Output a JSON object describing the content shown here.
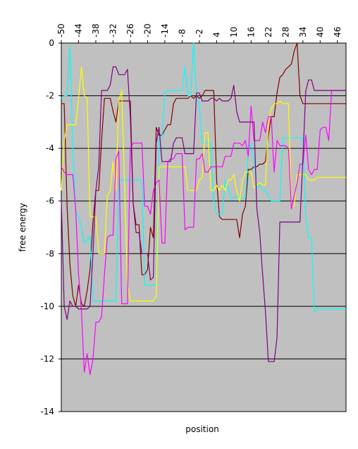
{
  "chart_data": {
    "type": "line",
    "xlabel": "position",
    "ylabel": "free energy",
    "ylim": [
      -14,
      0
    ],
    "y_ticks": [
      0,
      -2,
      -4,
      -6,
      -8,
      -10,
      -12,
      -14
    ],
    "x_ticks_top": [
      -50,
      -44,
      -38,
      -32,
      -26,
      -20,
      -14,
      -8,
      -2,
      4,
      10,
      16,
      22,
      28,
      34,
      40,
      46
    ],
    "xlim": [
      -50,
      49
    ],
    "grid": "horizontal",
    "x_axis_position": "top",
    "plot_background": "#c0c0c0",
    "series": [
      {
        "color": "#800000",
        "x": [
          -50,
          -49,
          -48,
          -47,
          -46,
          -45,
          -44,
          -43,
          -42,
          -41,
          -40,
          -39,
          -38,
          -37,
          -36,
          -35,
          -34,
          -33,
          -32,
          -31,
          -30,
          -29,
          -28,
          -27,
          -26,
          -25,
          -24,
          -23,
          -22,
          -21,
          -20,
          -19,
          -18,
          -17,
          -16,
          -15,
          -14,
          -13,
          -12,
          -11,
          -10,
          -9,
          -8,
          -7,
          -6,
          -5,
          -4,
          -3,
          -2,
          -1,
          0,
          1,
          2,
          3,
          4,
          5,
          6,
          7,
          8,
          9,
          10,
          11,
          12,
          13,
          14,
          15,
          16,
          17,
          18,
          19,
          20,
          21,
          22,
          23,
          24,
          25,
          26,
          27,
          28,
          29,
          30,
          31,
          32,
          33,
          34,
          35,
          36,
          37,
          38,
          39,
          40,
          41,
          42,
          43,
          44,
          45,
          46,
          47,
          48,
          49
        ],
        "y": [
          -2.3,
          -2.3,
          -6.2,
          -8.4,
          -9.6,
          -10.0,
          -9.2,
          -9.9,
          -10.0,
          -9.4,
          -8.6,
          -6.8,
          -5.6,
          -5.6,
          -3.7,
          -2.1,
          -2.1,
          -2.1,
          -2.6,
          -3.0,
          -2.2,
          -2.2,
          -2.2,
          -2.2,
          -2.2,
          -6.1,
          -6.9,
          -6.9,
          -8.8,
          -8.8,
          -8.6,
          -7.0,
          -7.4,
          -3.2,
          -3.5,
          -3.5,
          -3.3,
          -3.1,
          -3.1,
          -2.3,
          -2.1,
          -2.1,
          -2.1,
          -2.1,
          -2.1,
          -2.0,
          -2.1,
          -2.0,
          -2.1,
          -2.0,
          -1.8,
          -1.8,
          -1.8,
          -1.8,
          -5.2,
          -6.6,
          -6.7,
          -6.7,
          -6.7,
          -6.7,
          -6.7,
          -6.7,
          -7.4,
          -6.5,
          -6.2,
          -4.8,
          -4.8,
          -4.7,
          -4.7,
          -4.6,
          -4.6,
          -4.5,
          -3.5,
          -2.8,
          -2.8,
          -1.9,
          -1.3,
          -1.2,
          -1.0,
          -0.9,
          -0.8,
          -0.3,
          0,
          -2.0,
          -2.3,
          -2.3,
          -2.3,
          -2.3,
          -2.3,
          -2.3,
          -2.3,
          -2.3,
          -2.3,
          -2.3,
          -2.3,
          -2.3,
          -2.3,
          -2.3,
          -2.3,
          -2.3
        ]
      },
      {
        "color": "#00ffff",
        "x": [
          -50,
          -49,
          -48,
          -47,
          -46,
          -45,
          -44,
          -43,
          -42,
          -41,
          -40,
          -39,
          -38,
          -37,
          -36,
          -35,
          -34,
          -33,
          -32,
          -31,
          -30,
          -29,
          -28,
          -27,
          -26,
          -25,
          -24,
          -23,
          -22,
          -21,
          -20,
          -19,
          -18,
          -17,
          -16,
          -15,
          -14,
          -13,
          -12,
          -11,
          -10,
          -9,
          -8,
          -7,
          -6,
          -5,
          -4,
          -3,
          -2,
          -1,
          0,
          1,
          2,
          3,
          4,
          5,
          6,
          7,
          8,
          9,
          10,
          11,
          12,
          13,
          14,
          15,
          16,
          17,
          18,
          19,
          20,
          21,
          22,
          23,
          24,
          25,
          26,
          27,
          28,
          29,
          30,
          31,
          32,
          33,
          34,
          35,
          36,
          37,
          38,
          39,
          40,
          41,
          42,
          43,
          44,
          45,
          46,
          47,
          48,
          49
        ],
        "y": [
          -2.1,
          -2.0,
          -2.0,
          -0.1,
          -4.0,
          -6.4,
          -6.6,
          -7.0,
          -7.6,
          -7.5,
          -7.3,
          -9.8,
          -9.8,
          -9.8,
          -9.8,
          -9.8,
          -9.8,
          -9.8,
          -9.8,
          -9.8,
          -5.2,
          -5.2,
          -5.2,
          -5.2,
          -5.2,
          -5.2,
          -5.2,
          -5.2,
          -5.2,
          -9.2,
          -9.2,
          -9.2,
          -9.2,
          -9.2,
          -3.6,
          -3.6,
          -1.9,
          -1.8,
          -1.8,
          -1.8,
          -1.8,
          -1.8,
          -1.8,
          -0.9,
          -2.0,
          -2.0,
          0.0,
          -2.0,
          -2.4,
          -3.8,
          -3.8,
          -3.8,
          -3.8,
          -6.0,
          -6.5,
          -6.5,
          -6.5,
          -5.2,
          -5.5,
          -5.9,
          -5.9,
          -5.8,
          -5.9,
          -5.9,
          -5.9,
          -4.1,
          -3.8,
          -4.5,
          -5.5,
          -5.4,
          -5.6,
          -5.6,
          -5.8,
          -6.0,
          -6.0,
          -6.0,
          -6.0,
          -3.6,
          -3.6,
          -3.6,
          -3.6,
          -3.6,
          -3.6,
          -3.6,
          -3.6,
          -6.6,
          -7.4,
          -7.4,
          -10.2,
          -10.1,
          -10.1,
          -10.1,
          -10.1,
          -10.1,
          -10.1,
          -10.1,
          -10.1,
          -10.1,
          -10.1,
          -10.1
        ]
      },
      {
        "color": "#ffff00",
        "x": [
          -50,
          -49,
          -48,
          -47,
          -46,
          -45,
          -44,
          -43,
          -42,
          -41,
          -40,
          -39,
          -38,
          -37,
          -36,
          -35,
          -34,
          -33,
          -32,
          -31,
          -30,
          -29,
          -28,
          -27,
          -26,
          -25,
          -24,
          -23,
          -22,
          -21,
          -20,
          -19,
          -18,
          -17,
          -16,
          -15,
          -14,
          -13,
          -12,
          -11,
          -10,
          -9,
          -8,
          -7,
          -6,
          -5,
          -4,
          -3,
          -2,
          -1,
          0,
          1,
          2,
          3,
          4,
          5,
          6,
          7,
          8,
          9,
          10,
          11,
          12,
          13,
          14,
          15,
          16,
          17,
          18,
          19,
          20,
          21,
          22,
          23,
          24,
          25,
          26,
          27,
          28,
          29,
          30,
          31,
          32,
          33,
          34,
          35,
          36,
          37,
          38,
          39,
          40,
          41,
          42,
          43,
          44,
          45,
          46,
          47,
          48,
          49
        ],
        "y": [
          -5.6,
          -3.7,
          -3.1,
          -3.1,
          -3.1,
          -3.1,
          -2.1,
          -0.9,
          -2.0,
          -2.1,
          -6.6,
          -6.6,
          -6.6,
          -8.0,
          -8.0,
          -8.0,
          -5.8,
          -5.6,
          -4.5,
          -5.6,
          -2.2,
          -1.8,
          -5.4,
          -9.1,
          -9.8,
          -9.8,
          -9.8,
          -9.8,
          -9.8,
          -9.8,
          -9.8,
          -9.8,
          -9.8,
          -9.6,
          -4.7,
          -4.7,
          -4.7,
          -4.7,
          -4.7,
          -4.7,
          -4.7,
          -4.7,
          -4.7,
          -4.7,
          -5.6,
          -5.6,
          -5.6,
          -5.6,
          -5.2,
          -5.1,
          -3.4,
          -3.4,
          -5.6,
          -5.6,
          -5.4,
          -5.6,
          -5.4,
          -5.6,
          -5.2,
          -5.2,
          -5.0,
          -5.6,
          -6.0,
          -5.2,
          -4.9,
          -4.9,
          -4.9,
          -5.5,
          -5.4,
          -5.3,
          -5.4,
          -5.4,
          -3.0,
          -2.5,
          -2.3,
          -2.3,
          -2.2,
          -2.3,
          -2.3,
          -2.3,
          -6.2,
          -6.2,
          -5.0,
          -5.0,
          -5.0,
          -5.0,
          -5.2,
          -5.2,
          -5.2,
          -5.1,
          -5.1,
          -5.1,
          -5.1,
          -5.1,
          -5.1,
          -5.1,
          -5.1,
          -5.1,
          -5.1,
          -5.1
        ]
      },
      {
        "color": "#ff00ff",
        "x": [
          -50,
          -49,
          -48,
          -47,
          -46,
          -45,
          -44,
          -43,
          -42,
          -41,
          -40,
          -39,
          -38,
          -37,
          -36,
          -35,
          -34,
          -33,
          -32,
          -31,
          -30,
          -29,
          -28,
          -27,
          -26,
          -25,
          -24,
          -23,
          -22,
          -21,
          -20,
          -19,
          -18,
          -17,
          -16,
          -15,
          -14,
          -13,
          -12,
          -11,
          -10,
          -9,
          -8,
          -7,
          -6,
          -5,
          -4,
          -3,
          -2,
          -1,
          0,
          1,
          2,
          3,
          4,
          5,
          6,
          7,
          8,
          9,
          10,
          11,
          12,
          13,
          14,
          15,
          16,
          17,
          18,
          19,
          20,
          21,
          22,
          23,
          24,
          25,
          26,
          27,
          28,
          29,
          30,
          31,
          32,
          33,
          34,
          35,
          36,
          37,
          38,
          39,
          40,
          41,
          42,
          43,
          44,
          45,
          46,
          47,
          48,
          49
        ],
        "y": [
          -4.7,
          -4.9,
          -5.0,
          -5.0,
          -5.0,
          -6.3,
          -8.8,
          -10.2,
          -12.5,
          -11.8,
          -12.6,
          -12.0,
          -10.6,
          -10.6,
          -10.4,
          -8.8,
          -7.4,
          -7.3,
          -7.3,
          -4.4,
          -4.1,
          -9.9,
          -9.9,
          -9.9,
          -4.0,
          -3.8,
          -3.8,
          -3.8,
          -3.8,
          -6.2,
          -6.2,
          -6.5,
          -5.6,
          -5.3,
          -5.2,
          -7.6,
          -7.6,
          -4.5,
          -4.4,
          -4.4,
          -4.2,
          -4.2,
          -4.2,
          -7.1,
          -7.0,
          -7.0,
          -7.0,
          -4.4,
          -4.4,
          -4.2,
          -4.9,
          -4.9,
          -4.7,
          -4.7,
          -4.7,
          -4.7,
          -4.7,
          -4.3,
          -4.3,
          -4.3,
          -3.8,
          -3.8,
          -3.8,
          -3.9,
          -3.7,
          -4.3,
          -2.4,
          -3.7,
          -3.7,
          -3.7,
          -3.0,
          -3.4,
          -2.8,
          -2.8,
          -4.9,
          -3.7,
          -3.9,
          -3.9,
          -3.9,
          -4.0,
          -6.3,
          -5.8,
          -5.3,
          -4.6,
          -4.6,
          -3.5,
          -4.8,
          -5.0,
          -4.8,
          -4.8,
          -3.3,
          -3.2,
          -3.2,
          -3.7,
          -1.8,
          -1.8,
          -1.8,
          -1.8,
          -1.8,
          -1.8
        ]
      },
      {
        "color": "#800080",
        "x": [
          -50,
          -49,
          -48,
          -47,
          -46,
          -45,
          -44,
          -43,
          -42,
          -41,
          -40,
          -39,
          -38,
          -37,
          -36,
          -35,
          -34,
          -33,
          -32,
          -31,
          -30,
          -29,
          -28,
          -27,
          -26,
          -25,
          -24,
          -23,
          -22,
          -21,
          -20,
          -19,
          -18,
          -17,
          -16,
          -15,
          -14,
          -13,
          -12,
          -11,
          -10,
          -9,
          -8,
          -7,
          -6,
          -5,
          -4,
          -3,
          -2,
          -1,
          0,
          1,
          2,
          3,
          4,
          5,
          6,
          7,
          8,
          9,
          10,
          11,
          12,
          13,
          14,
          15,
          16,
          17,
          18,
          19,
          20,
          21,
          22,
          23,
          24,
          25,
          26,
          27,
          28,
          29,
          30,
          31,
          32,
          33,
          34,
          35,
          36,
          37,
          38,
          39,
          40,
          41,
          42,
          43,
          44,
          45,
          46,
          47,
          48,
          49
        ],
        "y": [
          -6.0,
          -10.0,
          -10.5,
          -9.8,
          -10.0,
          -10.0,
          -10.1,
          -10.1,
          -10.1,
          -10.1,
          -10.0,
          -8.0,
          -5.6,
          -4.7,
          -1.8,
          -1.8,
          -1.8,
          -1.6,
          -0.9,
          -0.9,
          -1.2,
          -1.2,
          -1.2,
          -1.0,
          -2.8,
          -6.1,
          -7.2,
          -7.2,
          -8.0,
          -8.0,
          -8.0,
          -9.0,
          -8.9,
          -3.8,
          -3.2,
          -4.5,
          -4.5,
          -4.5,
          -4.5,
          -3.8,
          -3.6,
          -3.6,
          -3.6,
          -4.2,
          -4.2,
          -4.2,
          -4.2,
          -1.9,
          -1.9,
          -2.2,
          -2.2,
          -2.2,
          -2.1,
          -2.1,
          -2.2,
          -2.1,
          -2.2,
          -2.2,
          -2.2,
          -2.1,
          -1.6,
          -2.6,
          -3.0,
          -3.0,
          -3.0,
          -3.0,
          -3.0,
          -3.0,
          -6.3,
          -7.2,
          -8.8,
          -10.2,
          -12.1,
          -12.1,
          -12.1,
          -11.2,
          -6.8,
          -6.8,
          -6.8,
          -6.8,
          -6.8,
          -6.8,
          -6.8,
          -6.8,
          -4.4,
          -1.8,
          -1.4,
          -1.4,
          -1.8,
          -1.8,
          -1.8,
          -1.8,
          -1.8,
          -1.8,
          -1.8,
          -1.8,
          -1.8,
          -1.8,
          -1.8,
          -1.8
        ]
      }
    ]
  }
}
